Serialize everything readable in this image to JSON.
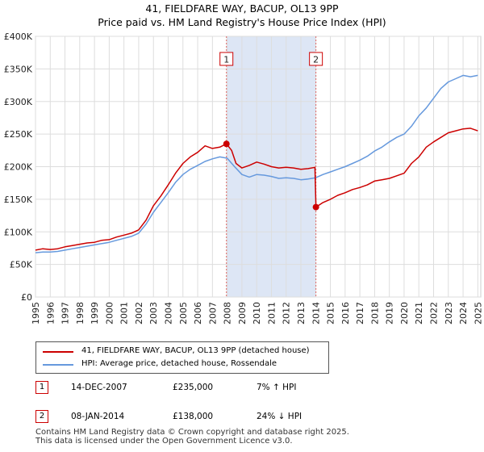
{
  "header": {
    "title": "41, FIELDFARE WAY, BACUP, OL13 9PP",
    "subtitle": "Price paid vs. HM Land Registry's House Price Index (HPI)"
  },
  "colors": {
    "property": "#cc0000",
    "hpi": "#6699dd",
    "band": "#dde6f5",
    "grid": "#dddddd",
    "marker_line": "#dd6666"
  },
  "chart_data": {
    "type": "line",
    "title": "41, FIELDFARE WAY, BACUP, OL13 9PP",
    "subtitle": "Price paid vs. HM Land Registry's House Price Index (HPI)",
    "xlabel": "",
    "ylabel": "",
    "xlim": [
      1995,
      2025.2
    ],
    "ylim": [
      0,
      400000
    ],
    "grid": true,
    "legend_position": "bottom-left (below plot)",
    "y_ticks": [
      {
        "value": 0,
        "label": "£0"
      },
      {
        "value": 50000,
        "label": "£50K"
      },
      {
        "value": 100000,
        "label": "£100K"
      },
      {
        "value": 150000,
        "label": "£150K"
      },
      {
        "value": 200000,
        "label": "£200K"
      },
      {
        "value": 250000,
        "label": "£250K"
      },
      {
        "value": 300000,
        "label": "£300K"
      },
      {
        "value": 350000,
        "label": "£350K"
      },
      {
        "value": 400000,
        "label": "£400K"
      }
    ],
    "x_ticks": [
      {
        "value": 1995,
        "label": "1995"
      },
      {
        "value": 1996,
        "label": "1996"
      },
      {
        "value": 1997,
        "label": "1997"
      },
      {
        "value": 1998,
        "label": "1998"
      },
      {
        "value": 1999,
        "label": "1999"
      },
      {
        "value": 2000,
        "label": "2000"
      },
      {
        "value": 2001,
        "label": "2001"
      },
      {
        "value": 2002,
        "label": "2002"
      },
      {
        "value": 2003,
        "label": "2003"
      },
      {
        "value": 2004,
        "label": "2004"
      },
      {
        "value": 2005,
        "label": "2005"
      },
      {
        "value": 2006,
        "label": "2006"
      },
      {
        "value": 2007,
        "label": "2007"
      },
      {
        "value": 2008,
        "label": "2008"
      },
      {
        "value": 2009,
        "label": "2009"
      },
      {
        "value": 2010,
        "label": "2010"
      },
      {
        "value": 2011,
        "label": "2011"
      },
      {
        "value": 2012,
        "label": "2012"
      },
      {
        "value": 2013,
        "label": "2013"
      },
      {
        "value": 2014,
        "label": "2014"
      },
      {
        "value": 2015,
        "label": "2015"
      },
      {
        "value": 2016,
        "label": "2016"
      },
      {
        "value": 2017,
        "label": "2017"
      },
      {
        "value": 2018,
        "label": "2018"
      },
      {
        "value": 2019,
        "label": "2019"
      },
      {
        "value": 2020,
        "label": "2020"
      },
      {
        "value": 2021,
        "label": "2021"
      },
      {
        "value": 2022,
        "label": "2022"
      },
      {
        "value": 2023,
        "label": "2023"
      },
      {
        "value": 2024,
        "label": "2024"
      },
      {
        "value": 2025,
        "label": "2025"
      }
    ],
    "shaded_band": {
      "from": 2007.95,
      "to": 2014.02
    },
    "series": [
      {
        "name": "41, FIELDFARE WAY, BACUP, OL13 9PP (detached house)",
        "color": "#cc0000",
        "x": [
          1995.0,
          1995.5,
          1996.0,
          1996.5,
          1997.0,
          1997.5,
          1998.0,
          1998.5,
          1999.0,
          1999.5,
          2000.0,
          2000.5,
          2001.0,
          2001.5,
          2002.0,
          2002.5,
          2003.0,
          2003.5,
          2004.0,
          2004.5,
          2005.0,
          2005.5,
          2006.0,
          2006.5,
          2007.0,
          2007.5,
          2007.95,
          2008.3,
          2008.6,
          2009.0,
          2009.5,
          2010.0,
          2010.5,
          2011.0,
          2011.5,
          2012.0,
          2012.5,
          2013.0,
          2013.5,
          2013.95,
          2014.02,
          2014.5,
          2015.0,
          2015.5,
          2016.0,
          2016.5,
          2017.0,
          2017.5,
          2018.0,
          2018.5,
          2019.0,
          2019.5,
          2020.0,
          2020.5,
          2021.0,
          2021.5,
          2022.0,
          2022.5,
          2023.0,
          2023.5,
          2024.0,
          2024.5,
          2025.0
        ],
        "y": [
          72000,
          74000,
          73000,
          74000,
          77000,
          79000,
          81000,
          83000,
          84000,
          87000,
          88000,
          92000,
          95000,
          98000,
          103000,
          118000,
          140000,
          155000,
          172000,
          190000,
          205000,
          215000,
          222000,
          232000,
          228000,
          230000,
          235000,
          225000,
          205000,
          198000,
          202000,
          207000,
          204000,
          200000,
          198000,
          199000,
          198000,
          196000,
          197000,
          199000,
          138000,
          145000,
          150000,
          156000,
          160000,
          165000,
          168000,
          172000,
          178000,
          180000,
          182000,
          186000,
          190000,
          205000,
          215000,
          230000,
          238000,
          245000,
          252000,
          255000,
          258000,
          259000,
          255000
        ]
      },
      {
        "name": "HPI: Average price, detached house, Rossendale",
        "color": "#6699dd",
        "x": [
          1995.0,
          1995.5,
          1996.0,
          1996.5,
          1997.0,
          1997.5,
          1998.0,
          1998.5,
          1999.0,
          1999.5,
          2000.0,
          2000.5,
          2001.0,
          2001.5,
          2002.0,
          2002.5,
          2003.0,
          2003.5,
          2004.0,
          2004.5,
          2005.0,
          2005.5,
          2006.0,
          2006.5,
          2007.0,
          2007.5,
          2008.0,
          2008.5,
          2009.0,
          2009.5,
          2010.0,
          2010.5,
          2011.0,
          2011.5,
          2012.0,
          2012.5,
          2013.0,
          2013.5,
          2014.0,
          2014.5,
          2015.0,
          2015.5,
          2016.0,
          2016.5,
          2017.0,
          2017.5,
          2018.0,
          2018.5,
          2019.0,
          2019.5,
          2020.0,
          2020.5,
          2021.0,
          2021.5,
          2022.0,
          2022.5,
          2023.0,
          2023.5,
          2024.0,
          2024.5,
          2025.0
        ],
        "y": [
          68000,
          69000,
          69000,
          70000,
          72000,
          74000,
          76000,
          78000,
          80000,
          82000,
          84000,
          87000,
          90000,
          93000,
          98000,
          112000,
          130000,
          145000,
          160000,
          176000,
          188000,
          196000,
          202000,
          208000,
          212000,
          215000,
          213000,
          200000,
          188000,
          184000,
          188000,
          187000,
          185000,
          182000,
          183000,
          182000,
          180000,
          181000,
          183000,
          188000,
          192000,
          196000,
          200000,
          205000,
          210000,
          216000,
          224000,
          230000,
          238000,
          245000,
          250000,
          262000,
          278000,
          290000,
          305000,
          320000,
          330000,
          335000,
          340000,
          338000,
          340000
        ]
      }
    ],
    "sales": [
      {
        "id": "1",
        "x": 2007.95,
        "y": 235000
      },
      {
        "id": "2",
        "x": 2014.02,
        "y": 138000
      }
    ]
  },
  "legend": {
    "property_label": "41, FIELDFARE WAY, BACUP, OL13 9PP (detached house)",
    "hpi_label": "HPI: Average price, detached house, Rossendale"
  },
  "sales_table": [
    {
      "marker": "1",
      "date": "14-DEC-2007",
      "price": "£235,000",
      "hpi_change": "7% ↑ HPI"
    },
    {
      "marker": "2",
      "date": "08-JAN-2014",
      "price": "£138,000",
      "hpi_change": "24% ↓ HPI"
    }
  ],
  "footer": {
    "line1": "Contains HM Land Registry data © Crown copyright and database right 2025.",
    "line2": "This data is licensed under the Open Government Licence v3.0."
  }
}
